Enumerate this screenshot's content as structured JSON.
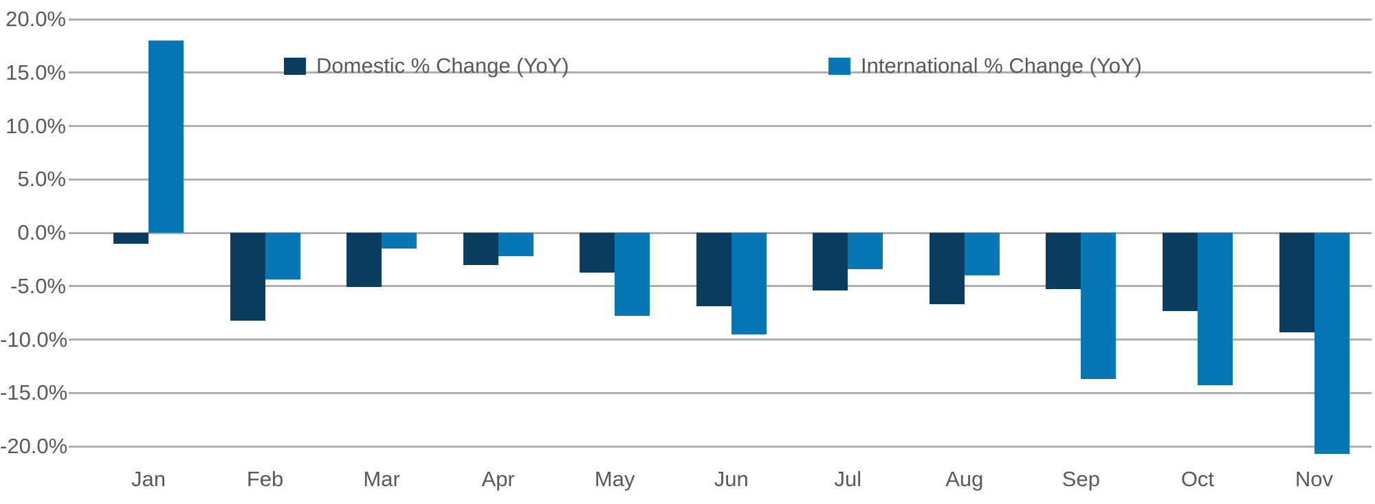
{
  "chart_data": {
    "type": "bar",
    "title": "",
    "categories": [
      "Jan",
      "Feb",
      "Mar",
      "Apr",
      "May",
      "Jun",
      "Jul",
      "Aug",
      "Sep",
      "Oct",
      "Nov"
    ],
    "series": [
      {
        "name": "Domestic % Change (YoY)",
        "key": "domestic",
        "color": "#0b3d61",
        "values": [
          -1.0,
          -8.2,
          -5.1,
          -3.0,
          -3.7,
          -6.9,
          -5.4,
          -6.7,
          -5.3,
          -7.3,
          -9.3
        ]
      },
      {
        "name": "International % Change (YoY)",
        "key": "international",
        "color": "#0778b5",
        "values": [
          18.0,
          -4.4,
          -1.5,
          -2.2,
          -7.8,
          -9.5,
          -3.4,
          -4.0,
          -13.7,
          -14.3,
          -20.7
        ]
      }
    ],
    "ylabel": "",
    "xlabel": "",
    "ylim": [
      -20,
      20
    ],
    "ytick_step": 5,
    "ytick_labels": [
      "20.0%",
      "15.0%",
      "10.0%",
      "5.0%",
      "0.0%",
      "-5.0%",
      "-10.0%",
      "-15.0%",
      "-20.0%"
    ],
    "ytick_values": [
      20,
      15,
      10,
      5,
      0,
      -5,
      -10,
      -15,
      -20
    ],
    "grid": "horizontal",
    "gridline_color": "#aeaeae",
    "text_color": "#595959",
    "legend_position": "top-inside"
  }
}
